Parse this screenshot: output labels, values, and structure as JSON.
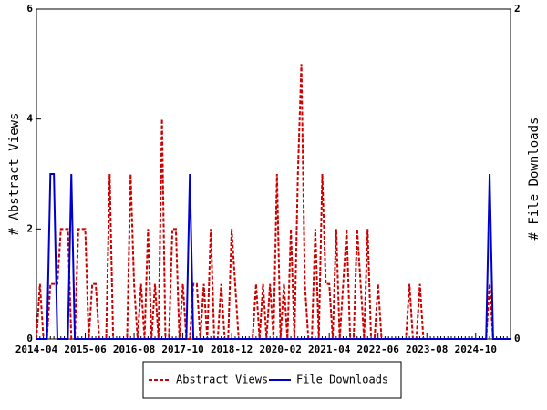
{
  "chart_data": {
    "type": "line",
    "y_label": "# Abstract Views",
    "y2_label": "# File Downloads",
    "categories": [
      "2014-04",
      null,
      null,
      null,
      null,
      null,
      null,
      null,
      null,
      null,
      null,
      null,
      null,
      null,
      "2015-06",
      null,
      null,
      null,
      null,
      null,
      null,
      null,
      null,
      null,
      null,
      null,
      null,
      null,
      "2016-08",
      null,
      null,
      null,
      null,
      null,
      null,
      null,
      null,
      null,
      null,
      null,
      null,
      null,
      "2017-10",
      null,
      null,
      null,
      null,
      null,
      null,
      null,
      null,
      null,
      null,
      null,
      null,
      null,
      "2018-12",
      null,
      null,
      null,
      null,
      null,
      null,
      null,
      null,
      null,
      null,
      null,
      null,
      null,
      "2020-02",
      null,
      null,
      null,
      null,
      null,
      null,
      null,
      null,
      null,
      null,
      null,
      null,
      null,
      "2021-04",
      null,
      null,
      null,
      null,
      null,
      null,
      null,
      null,
      null,
      null,
      null,
      null,
      null,
      "2022-06",
      null,
      null,
      null,
      null,
      null,
      null,
      null,
      null,
      null,
      null,
      null,
      null,
      null,
      "2023-08",
      null,
      null,
      null,
      null,
      null,
      null,
      null,
      null,
      null,
      null,
      null,
      null,
      null,
      "2024-10",
      null,
      null,
      null,
      null,
      null,
      null,
      null,
      null,
      null,
      null
    ],
    "series": [
      {
        "name": "Abstract Views",
        "color": "#cc0000",
        "dash": true,
        "axis": "y",
        "values": [
          0,
          1,
          0,
          0,
          1,
          1,
          1,
          2,
          2,
          2,
          0,
          0,
          2,
          2,
          2,
          0,
          1,
          1,
          0,
          0,
          0,
          3,
          0,
          0,
          0,
          0,
          0,
          3,
          1,
          0,
          1,
          0,
          2,
          0,
          1,
          0,
          4,
          0,
          0,
          2,
          2,
          0,
          1,
          0,
          0,
          1,
          1,
          0,
          1,
          0,
          2,
          0,
          0,
          1,
          0,
          0,
          2,
          1,
          0,
          0,
          0,
          0,
          0,
          1,
          0,
          1,
          0,
          1,
          0,
          3,
          0,
          1,
          0,
          2,
          0,
          3,
          5,
          1,
          0,
          0,
          2,
          0,
          3,
          1,
          1,
          0,
          2,
          0,
          1,
          2,
          0,
          0,
          2,
          1,
          0,
          2,
          0,
          0,
          1,
          0,
          0,
          0,
          0,
          0,
          0,
          0,
          0,
          1,
          0,
          0,
          1,
          0,
          0,
          0,
          0,
          0,
          0,
          0,
          0,
          0,
          0,
          0,
          0,
          0,
          0,
          0,
          0,
          0,
          0,
          0,
          1,
          0,
          0,
          0,
          0,
          0,
          0
        ]
      },
      {
        "name": "File Downloads",
        "color": "#0000cc",
        "dash": false,
        "axis": "y2",
        "values": [
          0,
          0,
          0,
          0,
          1,
          1,
          0,
          0,
          0,
          0,
          1,
          0,
          0,
          0,
          0,
          0,
          0,
          0,
          0,
          0,
          0,
          0,
          0,
          0,
          0,
          0,
          0,
          0,
          0,
          0,
          0,
          0,
          0,
          0,
          0,
          0,
          0,
          0,
          0,
          0,
          0,
          0,
          0,
          0,
          1,
          0,
          0,
          0,
          0,
          0,
          0,
          0,
          0,
          0,
          0,
          0,
          0,
          0,
          0,
          0,
          0,
          0,
          0,
          0,
          0,
          0,
          0,
          0,
          0,
          0,
          0,
          0,
          0,
          0,
          0,
          0,
          0,
          0,
          0,
          0,
          0,
          0,
          0,
          0,
          0,
          0,
          0,
          0,
          0,
          0,
          0,
          0,
          0,
          0,
          0,
          0,
          0,
          0,
          0,
          0,
          0,
          0,
          0,
          0,
          0,
          0,
          0,
          0,
          0,
          0,
          0,
          0,
          0,
          0,
          0,
          0,
          0,
          0,
          0,
          0,
          0,
          0,
          0,
          0,
          0,
          0,
          0,
          0,
          0,
          0,
          1,
          0,
          0,
          0,
          0,
          0,
          0
        ]
      }
    ],
    "ylim": [
      0,
      6
    ],
    "yticks": [
      0,
      2,
      4,
      6
    ],
    "y2lim": [
      0,
      2
    ],
    "y2ticks": [
      0,
      2
    ],
    "legend": "bottom"
  }
}
